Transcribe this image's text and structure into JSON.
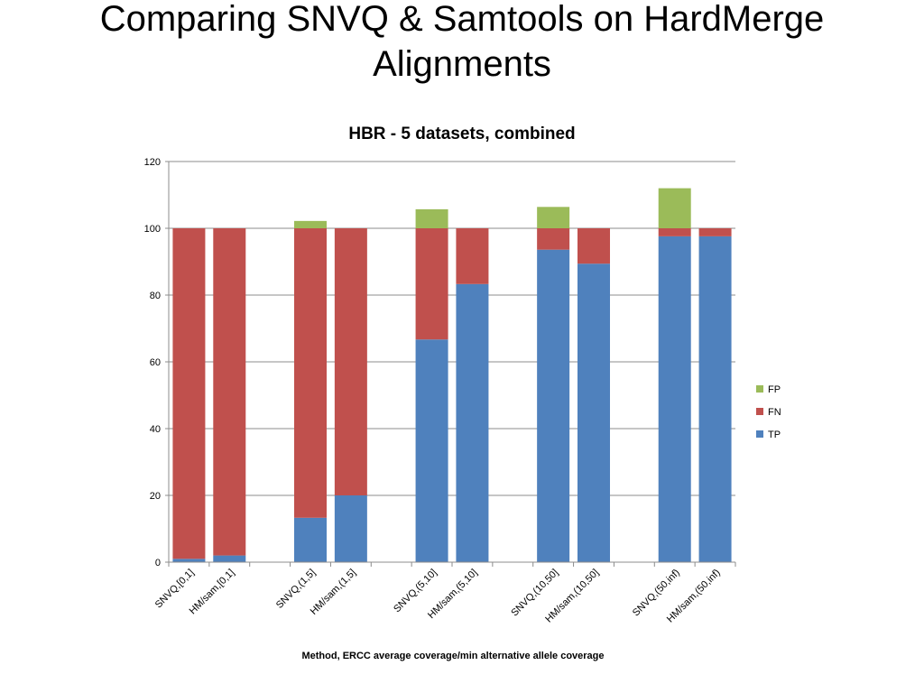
{
  "slide": {
    "title_line1": "Comparing SNVQ & Samtools on HardMerge",
    "title_line2": "Alignments"
  },
  "chart_data": {
    "type": "bar",
    "stacked": true,
    "title": "HBR - 5 datasets, combined",
    "xlabel": "Method, ERCC average coverage/min alternative allele coverage",
    "ylabel": "",
    "ylim": [
      0,
      120
    ],
    "yticks": [
      0,
      20,
      40,
      60,
      80,
      100,
      120
    ],
    "grid": true,
    "legend_position": "right",
    "categories": [
      "SNVQ,[0,1]",
      "HM/sam,[0,1]",
      "SNVQ,(1,5]",
      "HM/sam,(1,5]",
      "SNVQ,(5,10]",
      "HM/sam,(5,10]",
      "SNVQ,(10,50]",
      "HM/sam,(10,50]",
      "SNVQ,(50,inf)",
      "HM/sam,(50,inf)"
    ],
    "series": [
      {
        "name": "TP",
        "color": "#4F81BD",
        "values": [
          1,
          2,
          13.3,
          20,
          66.7,
          83.3,
          93.6,
          89.4,
          97.6,
          97.6
        ]
      },
      {
        "name": "FN",
        "color": "#C0504D",
        "values": [
          99,
          98,
          86.7,
          80,
          33.3,
          16.7,
          6.4,
          10.6,
          2.4,
          2.4
        ]
      },
      {
        "name": "FP",
        "color": "#9BBB59",
        "values": [
          0,
          0,
          2.2,
          0,
          5.7,
          0,
          6.4,
          0,
          12,
          0
        ]
      }
    ],
    "legend_order": [
      "FP",
      "FN",
      "TP"
    ]
  }
}
